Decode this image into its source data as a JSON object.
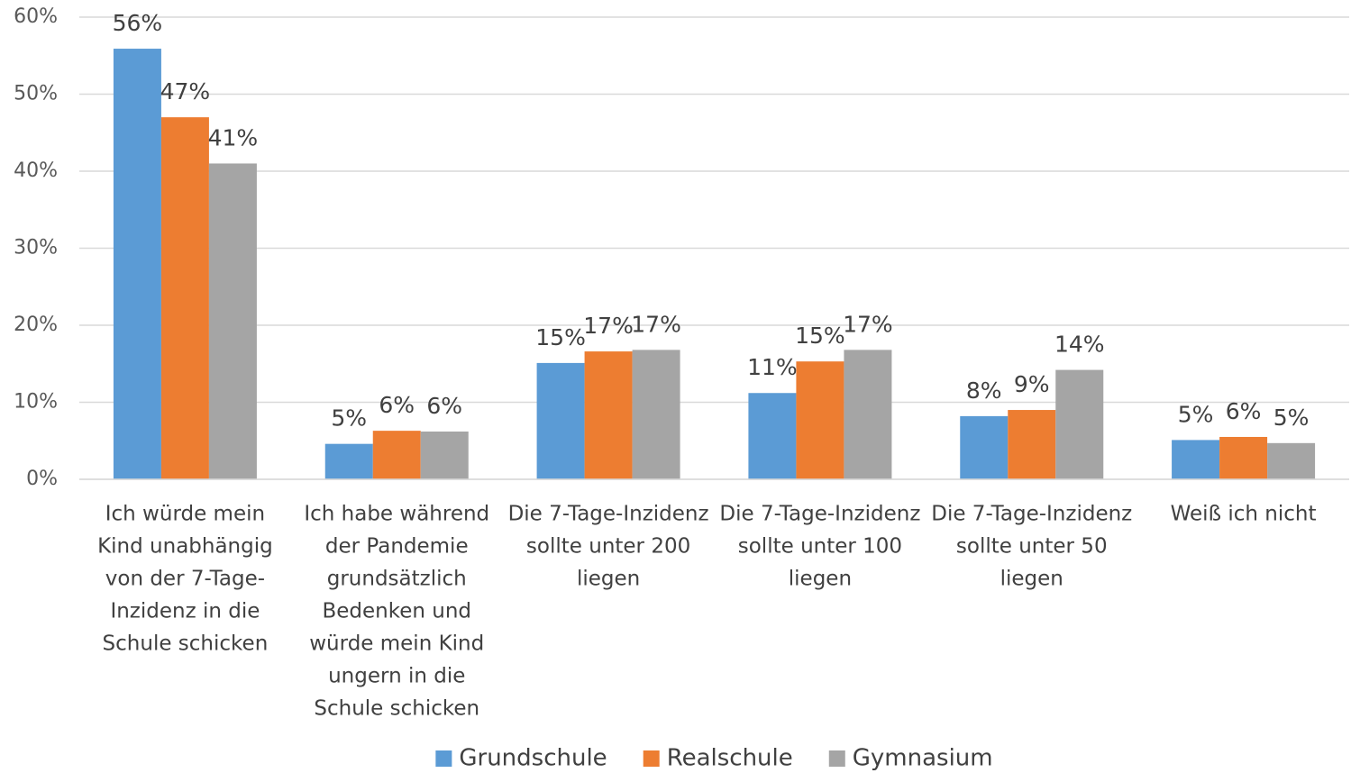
{
  "chart_data": {
    "type": "bar",
    "categories": [
      [
        "Ich würde mein",
        "Kind unabhängig",
        "von der 7-Tage-",
        "Inzidenz in die",
        "Schule schicken"
      ],
      [
        "Ich habe während",
        "der Pandemie",
        "grundsätzlich",
        "Bedenken und",
        "würde mein Kind",
        "ungern in die",
        "Schule schicken"
      ],
      [
        "Die 7-Tage-Inzidenz",
        "sollte unter 200",
        "liegen"
      ],
      [
        "Die 7-Tage-Inzidenz",
        "sollte unter 100",
        "liegen"
      ],
      [
        "Die 7-Tage-Inzidenz",
        "sollte unter 50",
        "liegen"
      ],
      [
        "Weiß ich nicht"
      ]
    ],
    "series": [
      {
        "name": "Grundschule",
        "color": "#5b9bd5",
        "values": [
          55.9,
          4.6,
          15.1,
          11.2,
          8.2,
          5.1
        ],
        "value_labels": [
          "56%",
          "5%",
          "15%",
          "11%",
          "8%",
          "5%"
        ]
      },
      {
        "name": "Realschule",
        "color": "#ed7d31",
        "values": [
          47.0,
          6.3,
          16.6,
          15.3,
          9.0,
          5.5
        ],
        "value_labels": [
          "47%",
          "6%",
          "17%",
          "15%",
          "9%",
          "6%"
        ]
      },
      {
        "name": "Gymnasium",
        "color": "#a5a5a5",
        "values": [
          41.0,
          6.2,
          16.8,
          16.8,
          14.2,
          4.7
        ],
        "value_labels": [
          "41%",
          "6%",
          "17%",
          "17%",
          "14%",
          "5%"
        ]
      }
    ],
    "ylim": [
      0,
      60
    ],
    "yticks": [
      {
        "value": 0,
        "label": "0%"
      },
      {
        "value": 10,
        "label": "10%"
      },
      {
        "value": 20,
        "label": "20%"
      },
      {
        "value": 30,
        "label": "30%"
      },
      {
        "value": 40,
        "label": "40%"
      },
      {
        "value": 50,
        "label": "50%"
      },
      {
        "value": 60,
        "label": "60%"
      }
    ],
    "grid": true,
    "legend": "bottom"
  }
}
